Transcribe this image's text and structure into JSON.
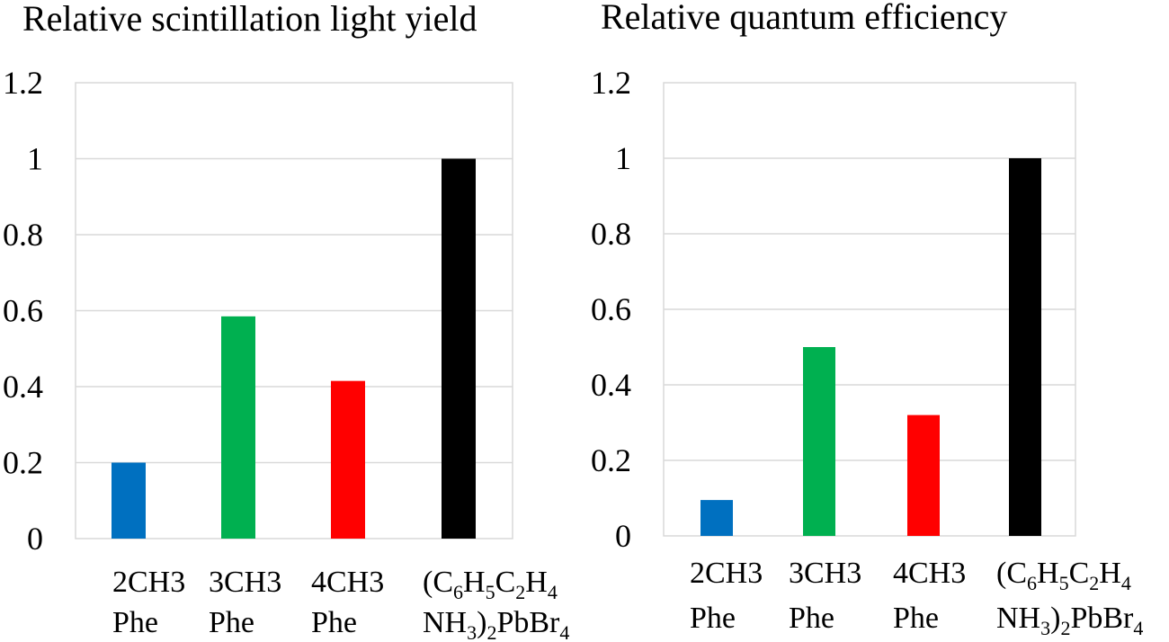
{
  "chart_data": [
    {
      "type": "bar",
      "title": "Relative scintillation light yield",
      "categories": [
        {
          "line1": "2CH3",
          "line2": "Phe"
        },
        {
          "line1": "3CH3",
          "line2": "Phe"
        },
        {
          "line1": "4CH3",
          "line2": "Phe"
        },
        {
          "line1_parts": [
            [
              "(C",
              ""
            ],
            [
              "6",
              "sub"
            ],
            [
              "H",
              ""
            ],
            [
              "5",
              "sub"
            ],
            [
              "C",
              ""
            ],
            [
              "2",
              "sub"
            ],
            [
              "H",
              ""
            ],
            [
              "4",
              "sub"
            ]
          ],
          "line2_parts": [
            [
              "NH",
              ""
            ],
            [
              "3",
              "sub"
            ],
            [
              ")",
              ""
            ],
            [
              "2",
              "sub"
            ],
            [
              "PbBr",
              ""
            ],
            [
              "4",
              "sub"
            ]
          ]
        }
      ],
      "values": [
        0.2,
        0.585,
        0.415,
        1.0
      ],
      "colors": [
        "#0070c0",
        "#00b050",
        "#ff0000",
        "#000000"
      ],
      "yticks": [
        "0",
        "0.2",
        "0.4",
        "0.6",
        "0.8",
        "1",
        "1.2"
      ],
      "ylim": [
        0,
        1.2
      ],
      "xlabel": "",
      "ylabel": "",
      "grid": true
    },
    {
      "type": "bar",
      "title": "Relative quantum efficiency",
      "categories": [
        {
          "line1": "2CH3",
          "line2": "Phe"
        },
        {
          "line1": "3CH3",
          "line2": "Phe"
        },
        {
          "line1": "4CH3",
          "line2": "Phe"
        },
        {
          "line1_parts": [
            [
              "(C",
              ""
            ],
            [
              "6",
              "sub"
            ],
            [
              "H",
              ""
            ],
            [
              "5",
              "sub"
            ],
            [
              "C",
              ""
            ],
            [
              "2",
              "sub"
            ],
            [
              "H",
              ""
            ],
            [
              "4",
              "sub"
            ]
          ],
          "line2_parts": [
            [
              "NH",
              ""
            ],
            [
              "3",
              "sub"
            ],
            [
              ")",
              ""
            ],
            [
              "2",
              "sub"
            ],
            [
              "PbBr",
              ""
            ],
            [
              "4",
              "sub"
            ]
          ]
        }
      ],
      "values": [
        0.095,
        0.5,
        0.32,
        1.0
      ],
      "colors": [
        "#0070c0",
        "#00b050",
        "#ff0000",
        "#000000"
      ],
      "yticks": [
        "0",
        "0.2",
        "0.4",
        "0.6",
        "0.8",
        "1",
        "1.2"
      ],
      "ylim": [
        0,
        1.2
      ],
      "xlabel": "",
      "ylabel": "",
      "grid": true
    }
  ]
}
